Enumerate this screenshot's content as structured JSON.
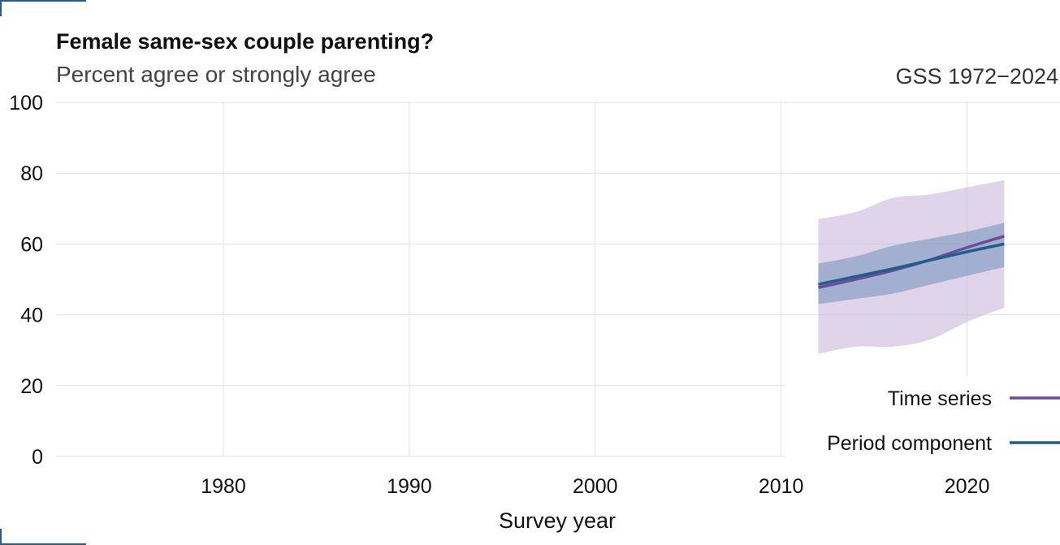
{
  "chart_data": {
    "type": "line",
    "title": "Female same-sex couple parenting?",
    "subtitle": "Percent agree or strongly agree",
    "source": "GSS 1972−2024",
    "xlabel": "Survey year",
    "ylabel": "",
    "xlim": [
      1971,
      2025
    ],
    "ylim": [
      0,
      100
    ],
    "x_ticks": [
      1980,
      1990,
      2000,
      2010,
      2020
    ],
    "y_ticks": [
      0,
      20,
      40,
      60,
      80,
      100
    ],
    "grid": true,
    "legend_position": "bottom-right",
    "series": [
      {
        "name": "Time series",
        "color": "#6b4c9a",
        "band_color": "#c9b8dc",
        "points": [
          {
            "x": 2012,
            "y": 47.7,
            "lo": 29,
            "hi": 67
          },
          {
            "x": 2014,
            "y": 50.0,
            "lo": 31,
            "hi": 69
          },
          {
            "x": 2016,
            "y": 52.5,
            "lo": 31,
            "hi": 73
          },
          {
            "x": 2018,
            "y": 55.5,
            "lo": 33,
            "hi": 74
          },
          {
            "x": 2020,
            "y": 59.0,
            "lo": 38,
            "hi": 76
          },
          {
            "x": 2022,
            "y": 62.2,
            "lo": 42,
            "hi": 78
          }
        ]
      },
      {
        "name": "Period component",
        "color": "#1f5e8a",
        "band_color": "#7a96be",
        "points": [
          {
            "x": 2012,
            "y": 48.6,
            "lo": 43,
            "hi": 54.5
          },
          {
            "x": 2014,
            "y": 50.8,
            "lo": 44.5,
            "hi": 56.5
          },
          {
            "x": 2016,
            "y": 53.0,
            "lo": 46,
            "hi": 59.5
          },
          {
            "x": 2018,
            "y": 55.4,
            "lo": 48.5,
            "hi": 61.5
          },
          {
            "x": 2020,
            "y": 57.8,
            "lo": 51,
            "hi": 63.5
          },
          {
            "x": 2022,
            "y": 60.0,
            "lo": 53.5,
            "hi": 66
          }
        ]
      }
    ]
  }
}
